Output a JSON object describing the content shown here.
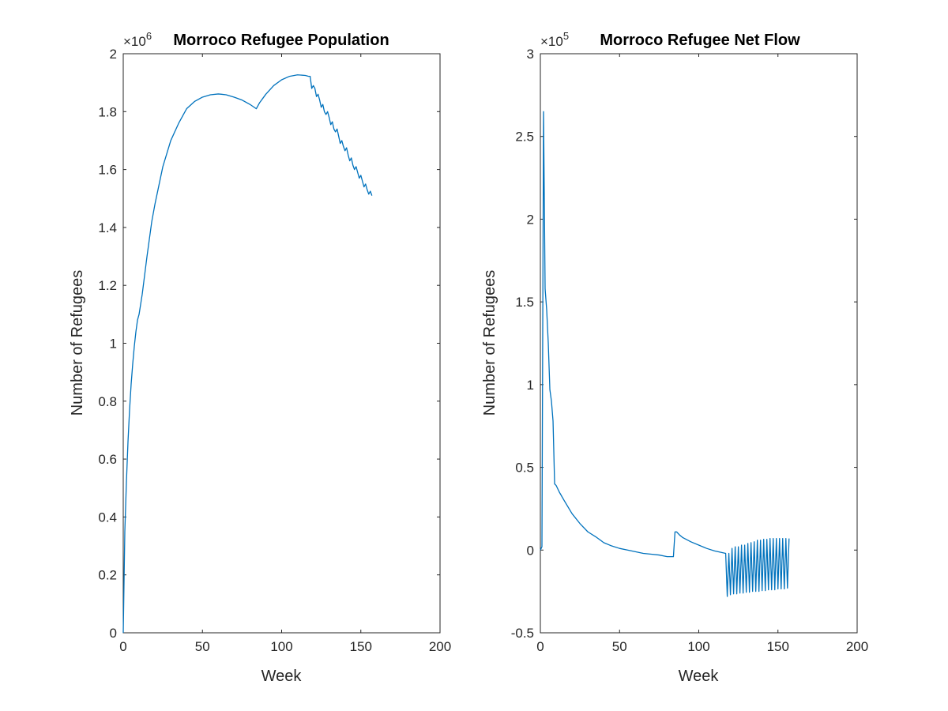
{
  "chart_data": [
    {
      "type": "line",
      "title": "Morroco Refugee Population",
      "xlabel": "Week",
      "ylabel": "Number of Refugees",
      "xlim": [
        0,
        200
      ],
      "ylim": [
        0,
        2
      ],
      "y_exponent": 6,
      "x_ticks": [
        0,
        50,
        100,
        150,
        200
      ],
      "x_tick_labels": [
        "0",
        "50",
        "100",
        "150",
        "200"
      ],
      "y_ticks": [
        0,
        0.2,
        0.4,
        0.6,
        0.8,
        1,
        1.2,
        1.4,
        1.6,
        1.8,
        2
      ],
      "y_tick_labels": [
        "0",
        "0.2",
        "0.4",
        "0.6",
        "0.8",
        "1",
        "1.2",
        "1.4",
        "1.6",
        "1.8",
        "2"
      ],
      "grid": false,
      "color": "#0072BD",
      "series": [
        {
          "x": [
            0,
            1,
            2,
            3,
            4,
            5,
            6,
            7,
            8,
            9,
            10,
            12,
            15,
            18,
            20,
            25,
            30,
            35,
            40,
            45,
            50,
            55,
            60,
            62,
            65,
            70,
            75,
            80,
            84,
            86,
            88,
            90,
            95,
            100,
            105,
            110,
            115,
            117,
            118,
            119,
            120,
            121,
            122,
            123,
            124,
            125,
            126,
            127,
            128,
            129,
            130,
            131,
            132,
            133,
            134,
            135,
            136,
            137,
            138,
            139,
            140,
            141,
            142,
            143,
            144,
            145,
            146,
            147,
            148,
            149,
            150,
            151,
            152,
            153,
            154,
            155,
            156,
            157
          ],
          "y": [
            0,
            0.35,
            0.52,
            0.66,
            0.77,
            0.86,
            0.93,
            0.99,
            1.04,
            1.08,
            1.1,
            1.17,
            1.3,
            1.42,
            1.48,
            1.61,
            1.7,
            1.76,
            1.81,
            1.835,
            1.85,
            1.858,
            1.861,
            1.86,
            1.858,
            1.85,
            1.84,
            1.825,
            1.81,
            1.83,
            1.845,
            1.86,
            1.89,
            1.91,
            1.922,
            1.927,
            1.925,
            1.922,
            1.922,
            1.88,
            1.89,
            1.88,
            1.852,
            1.86,
            1.84,
            1.815,
            1.825,
            1.8,
            1.79,
            1.8,
            1.78,
            1.755,
            1.765,
            1.74,
            1.73,
            1.74,
            1.715,
            1.69,
            1.7,
            1.68,
            1.665,
            1.675,
            1.65,
            1.63,
            1.64,
            1.615,
            1.6,
            1.61,
            1.59,
            1.57,
            1.58,
            1.56,
            1.54,
            1.55,
            1.53,
            1.515,
            1.525,
            1.51
          ]
        }
      ]
    },
    {
      "type": "line",
      "title": "Morroco Refugee Net Flow",
      "xlabel": "Week",
      "ylabel": "Number of Refugees",
      "xlim": [
        0,
        200
      ],
      "ylim": [
        -0.5,
        3
      ],
      "y_exponent": 5,
      "x_ticks": [
        0,
        50,
        100,
        150,
        200
      ],
      "x_tick_labels": [
        "0",
        "50",
        "100",
        "150",
        "200"
      ],
      "y_ticks": [
        -0.5,
        0,
        0.5,
        1,
        1.5,
        2,
        2.5,
        3
      ],
      "y_tick_labels": [
        "-0.5",
        "0",
        "0.5",
        "1",
        "1.5",
        "2",
        "2.5",
        "3"
      ],
      "grid": false,
      "color": "#0072BD",
      "series": [
        {
          "x": [
            0,
            1,
            2,
            3,
            4,
            5,
            6,
            7,
            8,
            9,
            10,
            12,
            15,
            20,
            25,
            30,
            35,
            40,
            45,
            50,
            55,
            60,
            65,
            70,
            75,
            80,
            84,
            85,
            86,
            88,
            90,
            95,
            100,
            105,
            110,
            117,
            118,
            119,
            120,
            121,
            122,
            123,
            124,
            125,
            126,
            127,
            128,
            129,
            130,
            131,
            132,
            133,
            134,
            135,
            136,
            137,
            138,
            139,
            140,
            141,
            142,
            143,
            144,
            145,
            146,
            147,
            148,
            149,
            150,
            151,
            152,
            153,
            154,
            155,
            156,
            157
          ],
          "y": [
            0,
            0.02,
            2.65,
            1.58,
            1.45,
            1.25,
            0.97,
            0.9,
            0.78,
            0.4,
            0.39,
            0.35,
            0.3,
            0.22,
            0.16,
            0.11,
            0.08,
            0.045,
            0.025,
            0.01,
            0,
            -0.01,
            -0.02,
            -0.025,
            -0.03,
            -0.04,
            -0.04,
            0.11,
            0.11,
            0.09,
            0.075,
            0.05,
            0.03,
            0.01,
            -0.005,
            -0.02,
            -0.28,
            -0.02,
            -0.27,
            0.01,
            -0.265,
            0.02,
            -0.265,
            0.02,
            -0.26,
            0.03,
            -0.26,
            0.03,
            -0.255,
            0.04,
            -0.255,
            0.045,
            -0.25,
            0.05,
            -0.25,
            0.06,
            -0.25,
            0.06,
            -0.245,
            0.065,
            -0.245,
            0.065,
            -0.24,
            0.07,
            -0.24,
            0.07,
            -0.24,
            0.07,
            -0.235,
            0.07,
            -0.235,
            0.07,
            -0.235,
            0.07,
            -0.23,
            0.07
          ]
        }
      ]
    }
  ]
}
